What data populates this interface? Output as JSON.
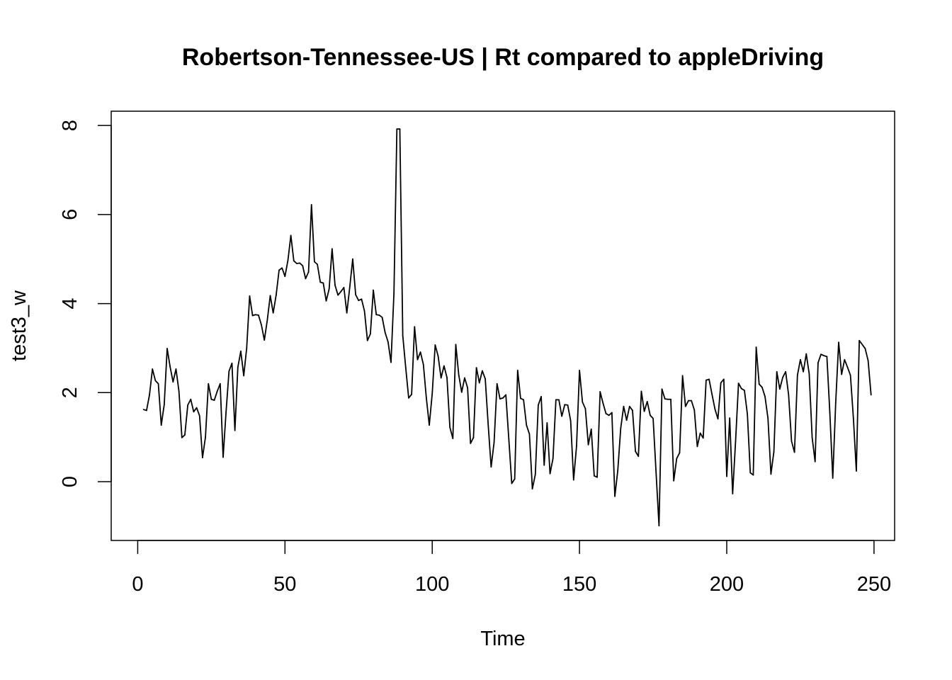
{
  "chart_data": {
    "type": "line",
    "title": "Robertson-Tennessee-US | Rt compared to appleDriving",
    "xlabel": "Time",
    "ylabel": "test3_w",
    "xlim": [
      -9,
      257
    ],
    "ylim": [
      -1.32,
      8.32
    ],
    "grid": false,
    "legend": "none",
    "x_ticks": [
      0,
      50,
      100,
      150,
      200,
      250
    ],
    "x_tick_labels": [
      "0",
      "50",
      "100",
      "150",
      "200",
      "250"
    ],
    "y_ticks": [
      0,
      2,
      4,
      6,
      8
    ],
    "y_tick_labels": [
      "0",
      "2",
      "4",
      "6",
      "8"
    ],
    "series": [
      {
        "x_start": 2,
        "values": [
          1.62,
          1.6,
          1.95,
          2.53,
          2.27,
          2.2,
          1.27,
          1.73,
          2.99,
          2.58,
          2.24,
          2.53,
          2.03,
          0.99,
          1.05,
          1.72,
          1.85,
          1.57,
          1.66,
          1.48,
          0.54,
          1.0,
          2.2,
          1.85,
          1.83,
          2.03,
          2.2,
          0.55,
          1.57,
          2.48,
          2.66,
          1.15,
          2.57,
          2.93,
          2.38,
          3.0,
          4.17,
          3.73,
          3.75,
          3.74,
          3.52,
          3.18,
          3.63,
          4.18,
          3.79,
          4.19,
          4.75,
          4.8,
          4.61,
          4.97,
          5.53,
          4.96,
          4.9,
          4.91,
          4.85,
          4.56,
          4.71,
          6.22,
          4.94,
          4.88,
          4.48,
          4.46,
          4.06,
          4.33,
          5.23,
          4.41,
          4.19,
          4.27,
          4.36,
          3.79,
          4.37,
          5.0,
          4.2,
          4.07,
          4.1,
          3.83,
          3.17,
          3.32,
          4.3,
          3.75,
          3.74,
          3.69,
          3.35,
          3.14,
          2.68,
          4.23,
          7.92,
          7.92,
          3.28,
          2.56,
          1.88,
          1.96,
          3.48,
          2.74,
          2.91,
          2.63,
          1.88,
          1.27,
          1.98,
          3.07,
          2.82,
          2.33,
          2.6,
          2.34,
          1.22,
          0.97,
          3.08,
          2.4,
          2.01,
          2.33,
          2.11,
          0.86,
          0.99,
          2.56,
          2.22,
          2.49,
          2.31,
          1.28,
          0.33,
          0.88,
          2.2,
          1.86,
          1.88,
          1.95,
          0.96,
          -0.04,
          0.06,
          2.5,
          1.87,
          1.84,
          1.27,
          1.07,
          -0.16,
          0.16,
          1.72,
          1.91,
          0.37,
          1.32,
          0.18,
          0.52,
          1.84,
          1.84,
          1.47,
          1.73,
          1.72,
          1.37,
          0.04,
          0.8,
          2.5,
          1.79,
          1.64,
          0.83,
          1.18,
          0.13,
          0.1,
          2.02,
          1.76,
          1.53,
          1.49,
          1.55,
          -0.33,
          0.25,
          1.2,
          1.69,
          1.38,
          1.69,
          1.6,
          0.68,
          0.57,
          2.03,
          1.58,
          1.8,
          1.49,
          1.42,
          0.21,
          -0.99,
          2.08,
          1.86,
          1.85,
          1.85,
          0.02,
          0.52,
          0.65,
          2.38,
          1.69,
          1.82,
          1.82,
          1.61,
          0.79,
          1.09,
          0.98,
          2.28,
          2.3,
          1.96,
          1.63,
          1.41,
          2.22,
          2.3,
          0.12,
          1.43,
          -0.27,
          0.91,
          2.21,
          2.09,
          2.05,
          1.52,
          0.2,
          0.15,
          3.02,
          2.19,
          2.12,
          1.91,
          1.42,
          0.17,
          0.67,
          2.47,
          2.08,
          2.34,
          2.47,
          1.95,
          0.91,
          0.66,
          2.39,
          2.74,
          2.47,
          2.87,
          2.42,
          0.99,
          0.45,
          2.67,
          2.86,
          2.83,
          2.81,
          1.55,
          0.08,
          1.78,
          3.13,
          2.41,
          2.74,
          2.57,
          2.39,
          1.43,
          0.24,
          3.17,
          3.08,
          2.99,
          2.72,
          1.95
        ]
      }
    ]
  }
}
